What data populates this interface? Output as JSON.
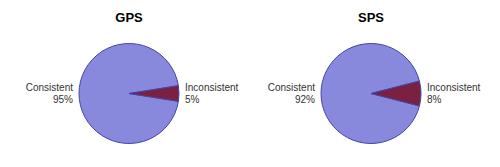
{
  "chart_data": [
    {
      "type": "pie",
      "title": "GPS",
      "categories": [
        "Consistent",
        "Inconsistent"
      ],
      "values": [
        95,
        5
      ],
      "value_labels": [
        "95%",
        "5%"
      ],
      "data_labels": true,
      "colors": [
        "#8888dd",
        "#7a2040"
      ]
    },
    {
      "type": "pie",
      "title": "SPS",
      "categories": [
        "Consistent",
        "Inconsistent"
      ],
      "values": [
        92,
        8
      ],
      "value_labels": [
        "92%",
        "8%"
      ],
      "data_labels": true,
      "colors": [
        "#8888dd",
        "#7a2040"
      ]
    }
  ]
}
